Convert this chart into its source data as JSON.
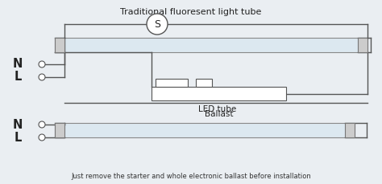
{
  "title": "Traditional fluoresent light tube",
  "footer": "Just remove the starter and whole electronic ballast before installation",
  "bg_color": "#eaeef2",
  "line_color": "#555555",
  "tube_fill": "#dce8f0",
  "tube_stroke": "#888888",
  "cap_fill": "#cccccc",
  "label_N1": "N",
  "label_L1": "L",
  "label_N2": "N",
  "label_L2": "L",
  "ballast_label": "Ballast",
  "led_label": "LED tube",
  "starter_label": "S",
  "title_fontsize": 8.0,
  "footer_fontsize": 6.0,
  "nl_fontsize": 10.5
}
